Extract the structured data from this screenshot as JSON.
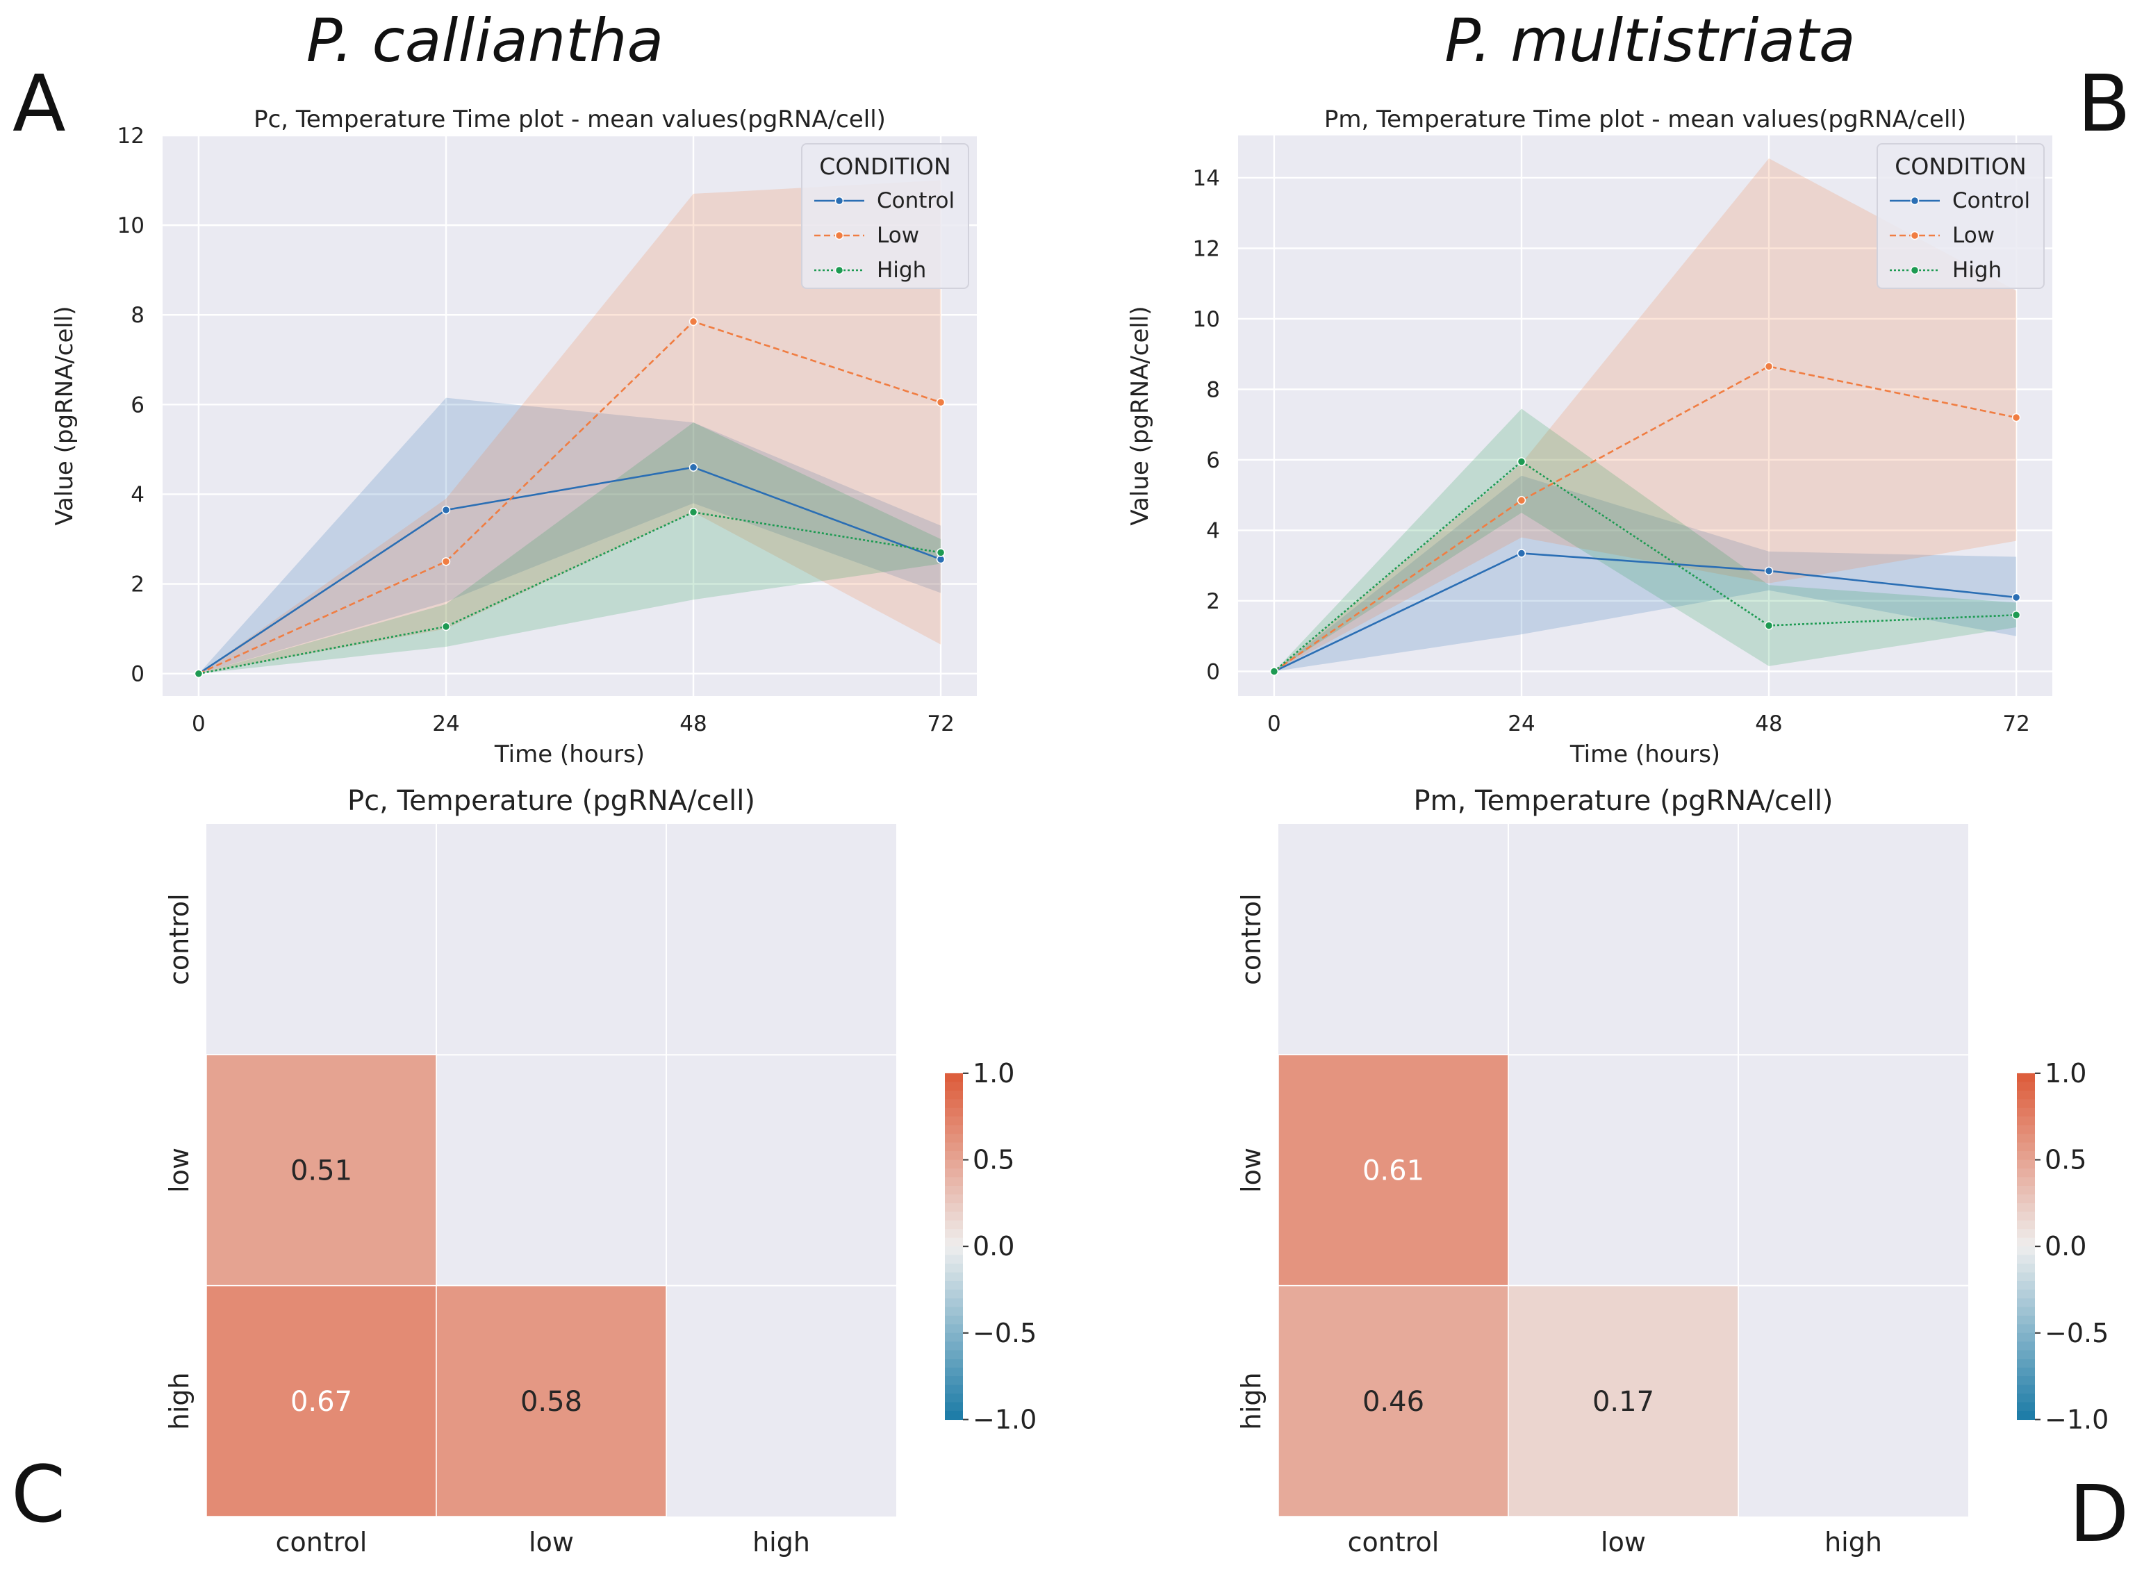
{
  "figure": {
    "species_left": "P. calliantha",
    "species_right": "P. multistriata",
    "panel_labels": [
      "A",
      "B",
      "C",
      "D"
    ]
  },
  "colors": {
    "control": "#2a6eb4",
    "low": "#f07d42",
    "high": "#1d9a52",
    "axes_bg": "#eaeaf2",
    "grid": "#ffffff",
    "cmap_neg": "#1a7aa6",
    "cmap_mid": "#eeeeee",
    "cmap_pos": "#dd5a38"
  },
  "chart_data": [
    {
      "id": "A",
      "type": "line",
      "title": "Pc, Temperature Time plot - mean values(pgRNA/cell)",
      "xlabel": "Time (hours)",
      "ylabel": "Value (pgRNA/cell)",
      "x": [
        0,
        24,
        48,
        72
      ],
      "xticks": [
        "0",
        "24",
        "48",
        "72"
      ],
      "yticks": [
        0,
        2,
        4,
        6,
        8,
        10,
        12
      ],
      "ylim": [
        -0.5,
        12
      ],
      "legend": {
        "title": "CONDITION",
        "position": "top-right"
      },
      "series": [
        {
          "name": "Control",
          "key": "control",
          "values": [
            0,
            3.65,
            4.6,
            2.55
          ],
          "lower": [
            0,
            1.6,
            3.8,
            1.8
          ],
          "upper": [
            0,
            6.15,
            5.6,
            3.3
          ]
        },
        {
          "name": "Low",
          "key": "low",
          "values": [
            0,
            2.5,
            7.85,
            6.05
          ],
          "lower": [
            0,
            1.0,
            3.6,
            0.65
          ],
          "upper": [
            0,
            3.9,
            10.7,
            11.0
          ]
        },
        {
          "name": "High",
          "key": "high",
          "values": [
            0,
            1.05,
            3.6,
            2.7
          ],
          "lower": [
            0,
            0.6,
            1.65,
            2.45
          ],
          "upper": [
            0,
            1.55,
            5.6,
            3.0
          ]
        }
      ]
    },
    {
      "id": "B",
      "type": "line",
      "title": "Pm, Temperature Time plot - mean values(pgRNA/cell)",
      "xlabel": "Time (hours)",
      "ylabel": "Value (pgRNA/cell)",
      "x": [
        0,
        24,
        48,
        72
      ],
      "xticks": [
        "0",
        "24",
        "48",
        "72"
      ],
      "yticks": [
        0,
        2,
        4,
        6,
        8,
        10,
        12,
        14
      ],
      "ylim": [
        -0.7,
        15.2
      ],
      "legend": {
        "title": "CONDITION",
        "position": "top-right"
      },
      "series": [
        {
          "name": "Control",
          "key": "control",
          "values": [
            0,
            3.35,
            2.85,
            2.1
          ],
          "lower": [
            0,
            1.05,
            2.3,
            1.0
          ],
          "upper": [
            0,
            5.55,
            3.4,
            3.25
          ]
        },
        {
          "name": "Low",
          "key": "low",
          "values": [
            0,
            4.85,
            8.65,
            7.2
          ],
          "lower": [
            0,
            3.8,
            2.5,
            3.7
          ],
          "upper": [
            0,
            5.9,
            14.55,
            10.8
          ]
        },
        {
          "name": "High",
          "key": "high",
          "values": [
            0,
            5.95,
            1.3,
            1.6
          ],
          "lower": [
            0,
            4.5,
            0.15,
            1.25
          ],
          "upper": [
            0,
            7.45,
            2.45,
            1.95
          ]
        }
      ]
    },
    {
      "id": "C",
      "type": "heatmap",
      "title": "Pc, Temperature (pgRNA/cell)",
      "rows": [
        "control",
        "low",
        "high"
      ],
      "cols": [
        "control",
        "low",
        "high"
      ],
      "cells": [
        {
          "row": 1,
          "col": 0,
          "value": 0.51
        },
        {
          "row": 2,
          "col": 0,
          "value": 0.67
        },
        {
          "row": 2,
          "col": 1,
          "value": 0.58
        }
      ],
      "colorbar": {
        "min": -1.0,
        "max": 1.0,
        "ticks": [
          "1.0",
          "0.5",
          "0.0",
          "−0.5",
          "−1.0"
        ]
      }
    },
    {
      "id": "D",
      "type": "heatmap",
      "title": "Pm, Temperature (pgRNA/cell)",
      "rows": [
        "control",
        "low",
        "high"
      ],
      "cols": [
        "control",
        "low",
        "high"
      ],
      "cells": [
        {
          "row": 1,
          "col": 0,
          "value": 0.61
        },
        {
          "row": 2,
          "col": 0,
          "value": 0.46
        },
        {
          "row": 2,
          "col": 1,
          "value": 0.17
        }
      ],
      "colorbar": {
        "min": -1.0,
        "max": 1.0,
        "ticks": [
          "1.0",
          "0.5",
          "0.0",
          "−0.5",
          "−1.0"
        ]
      }
    }
  ]
}
